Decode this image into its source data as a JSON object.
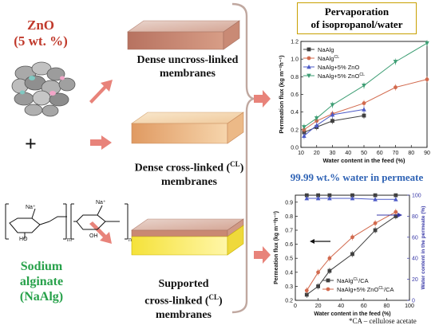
{
  "zno_label": {
    "line1": "ZnO",
    "line2": "(5 wt. %)"
  },
  "plus": "+",
  "membranes": [
    {
      "line1": "Dense uncross-linked",
      "line2": "membranes"
    },
    {
      "line1": "Dense cross-linked (",
      "sup": "CL",
      "close": ")",
      "line2": "membranes"
    },
    {
      "line1": "Supported",
      "line2": "cross-linked (",
      "sup": "CL",
      "close": ") membranes"
    }
  ],
  "sodium_alginate": {
    "line1": "Sodium",
    "line2": "alginate",
    "line3": "(NaAlg)"
  },
  "pervaporation_title": {
    "line1": "Pervaporation",
    "line2": "of isopropanol/water"
  },
  "permeate_purity": "99.99 wt.% water in permeate",
  "footnote": "*CA – cellulose acetate",
  "structure_labels": {
    "na1": "Na⁺",
    "na2": "Na⁺",
    "ho": "HO",
    "oh": "OH",
    "m": "m",
    "n": "n"
  },
  "colors": {
    "zno": "#c0392b",
    "alginate": "#27a14a",
    "purity": "#2f63b5",
    "arrow": "#e8837a",
    "bracket": "#c0a8a0",
    "box_border": "#c8a000"
  },
  "chart_data": [
    {
      "type": "line",
      "xlabel": "Water content in the feed (%)",
      "ylabel": "Permeation flux (kg m⁻²h⁻¹)",
      "xlim": [
        10,
        90
      ],
      "ylim": [
        0.0,
        1.2
      ],
      "xticks": [
        10,
        20,
        30,
        40,
        50,
        60,
        70,
        80,
        90
      ],
      "yticks": [
        0.0,
        0.2,
        0.4,
        0.6,
        0.8,
        1.0,
        1.2
      ],
      "legend_position": "top-left",
      "series": [
        {
          "name": "NaAlg",
          "color": "#404040",
          "marker": "square",
          "x": [
            12,
            20,
            30,
            50
          ],
          "y": [
            0.17,
            0.23,
            0.3,
            0.36
          ]
        },
        {
          "name": "NaAlg",
          "name_sup": "CL",
          "color": "#d26a4e",
          "marker": "circle",
          "x": [
            12,
            20,
            30,
            50,
            70,
            90
          ],
          "y": [
            0.2,
            0.3,
            0.38,
            0.5,
            0.68,
            0.77
          ]
        },
        {
          "name": "NaAlg+5% ZnO",
          "color": "#4d5bc7",
          "marker": "triangle",
          "x": [
            12,
            20,
            30,
            50
          ],
          "y": [
            0.13,
            0.25,
            0.37,
            0.43
          ]
        },
        {
          "name": "NaAlg+5% ZnO",
          "name_sup": "CL",
          "color": "#3e9e74",
          "marker": "triangle-down",
          "x": [
            12,
            20,
            30,
            50,
            70,
            90
          ],
          "y": [
            0.23,
            0.33,
            0.48,
            0.7,
            0.97,
            1.18
          ]
        }
      ]
    },
    {
      "type": "line",
      "xlabel": "Water content in the feed (%)",
      "ylabel": "Permeation flux (kg m⁻²h⁻¹)",
      "y2label": "Water content in the permeate (%)",
      "xlim": [
        0,
        100
      ],
      "ylim": [
        0.2,
        0.95
      ],
      "y2lim": [
        0,
        100
      ],
      "xticks": [
        0,
        20,
        40,
        60,
        80,
        100
      ],
      "yticks": [
        0.2,
        0.3,
        0.4,
        0.5,
        0.6,
        0.7,
        0.8,
        0.9
      ],
      "y2ticks": [
        0,
        20,
        40,
        60,
        80,
        100
      ],
      "legend_position": "bottom-right",
      "series": [
        {
          "name": "NaAlg",
          "name_sup": "CL",
          "name_suffix": "/CA",
          "color": "#404040",
          "marker": "square",
          "axis": "left",
          "x": [
            10,
            20,
            30,
            50,
            70,
            88
          ],
          "y": [
            0.24,
            0.3,
            0.41,
            0.53,
            0.7,
            0.8
          ]
        },
        {
          "name": "NaAlg+5% ZnO",
          "name_sup": "CL",
          "name_suffix": "/CA",
          "color": "#d26a4e",
          "marker": "circle",
          "axis": "left",
          "x": [
            10,
            20,
            30,
            50,
            70,
            88
          ],
          "y": [
            0.27,
            0.4,
            0.5,
            0.65,
            0.75,
            0.83
          ]
        },
        {
          "name": "",
          "color": "#404040",
          "marker": "square",
          "axis": "right",
          "x": [
            10,
            20,
            30,
            50,
            70,
            88
          ],
          "y": [
            99.9,
            99.9,
            99.9,
            99.9,
            99.9,
            99.9
          ]
        },
        {
          "name": "",
          "color": "#4d5bc7",
          "marker": "triangle",
          "axis": "right",
          "x": [
            10,
            20,
            30,
            50,
            70,
            88
          ],
          "y": [
            97,
            97,
            97,
            97,
            96,
            96
          ]
        }
      ]
    }
  ]
}
